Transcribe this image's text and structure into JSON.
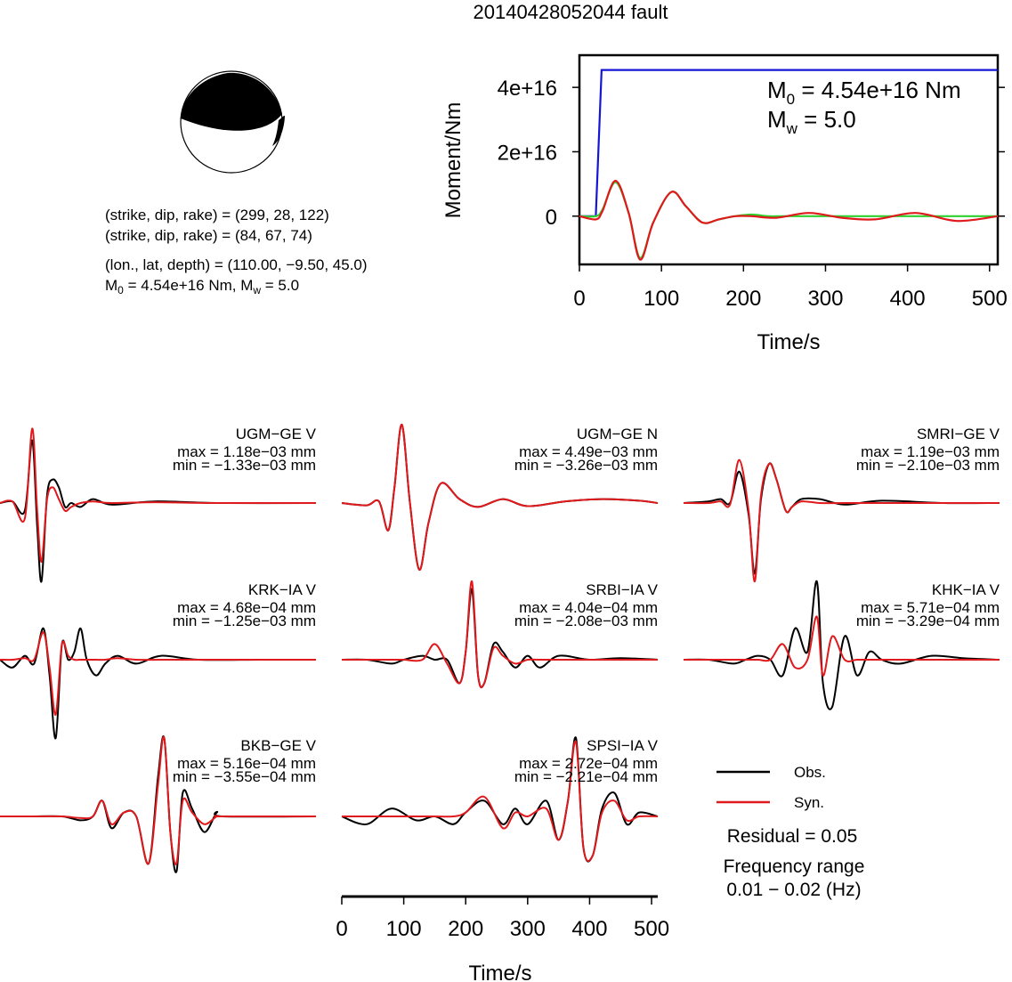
{
  "title": "20140428052044 fault",
  "mechanism": {
    "line1": "(strike, dip, rake) = (299, 28, 122)",
    "line2": "(strike, dip, rake) = (84, 67, 74)",
    "line3": "(lon., lat, depth) = (110.00, −9.50, 45.0)",
    "m0_prefix": "M",
    "m0_sub": "0",
    "m0_rest": " = 4.54e+16 Nm, M",
    "mw_sub": "w",
    "mw_rest": " = 5.0"
  },
  "legend": {
    "obs": "Obs.",
    "syn": "Syn.",
    "residual": "Residual = 0.05",
    "freq_label": "Frequency range",
    "freq_value": "0.01 − 0.02 (Hz)"
  },
  "colors": {
    "observed": "#000000",
    "synthetic": "#e0191c",
    "moment": "#1515d6",
    "stf": "#2fd12f"
  },
  "chart_data": [
    {
      "type": "line",
      "xlabel": "Time/s",
      "ylabel": "Moment/Nm",
      "xlim": [
        0,
        510
      ],
      "ylim": [
        -15000000000000000,
        50000000000000000
      ],
      "xticks": [
        "0",
        "100",
        "200",
        "300",
        "400",
        "500"
      ],
      "yticks": [
        "0",
        "2e+16",
        "4e+16"
      ],
      "annotation": {
        "m0_pre": "M",
        "m0_sub": "0",
        "m0_post": " = 4.54e+16 Nm",
        "mw_pre": "M",
        "mw_sub": "w",
        "mw_post": " = 5.0"
      },
      "series": [
        {
          "kind": "cumulative moment",
          "color": "#1515d6",
          "x": [
            0,
            20,
            27,
            510
          ],
          "y": [
            0,
            0,
            45400000000000000,
            45400000000000000
          ]
        },
        {
          "kind": "moment rate (green)",
          "color": "#2fd12f",
          "x": [
            0,
            20,
            28,
            44,
            60,
            74,
            90,
            112,
            130,
            150,
            170,
            190,
            210,
            230,
            250,
            280,
            510
          ],
          "y": [
            0,
            0,
            2000000000000000,
            10500000000000000,
            1000000000000000,
            -13000000000000000,
            -2000000000000000,
            7500000000000000,
            3000000000000000,
            -2000000000000000,
            -1000000000000000,
            0,
            500000000000000,
            0,
            0,
            0,
            0
          ]
        },
        {
          "kind": "moment rate (red)",
          "color": "#e0191c",
          "x": [
            0,
            20,
            28,
            44,
            60,
            74,
            90,
            112,
            130,
            150,
            170,
            190,
            210,
            240,
            280,
            320,
            360,
            410,
            460,
            510
          ],
          "y": [
            0,
            -1000000000000000,
            1500000000000000,
            11000000000000000,
            1000000000000000,
            -13500000000000000,
            -2000000000000000,
            7500000000000000,
            3000000000000000,
            -2000000000000000,
            -1000000000000000,
            0,
            0,
            -500000000000000,
            1000000000000000,
            -500000000000000,
            -1000000000000000,
            1000000000000000,
            -1500000000000000,
            0
          ]
        }
      ]
    },
    {
      "type": "line",
      "xlabel": "Time/s",
      "xlim": [
        0,
        510
      ],
      "xticks": [
        "0",
        "100",
        "200",
        "300",
        "400",
        "500"
      ],
      "panels": [
        {
          "station": "UGM−GE V",
          "max": "max = 1.18e−03 mm",
          "min": "min = −1.33e−03 mm",
          "obs_x": [
            0,
            20,
            40,
            52,
            60,
            67,
            76,
            85,
            95,
            105,
            115,
            130,
            150,
            180,
            250,
            350,
            510
          ],
          "obs_y": [
            0,
            0.02,
            -0.1,
            0.8,
            -0.3,
            -1.0,
            0.1,
            0.3,
            0.2,
            -0.05,
            0.0,
            -0.05,
            0.05,
            -0.02,
            0.02,
            0,
            0
          ],
          "syn_x": [
            0,
            20,
            40,
            52,
            60,
            67,
            76,
            85,
            95,
            105,
            115,
            130,
            150,
            180,
            250,
            350,
            510
          ],
          "syn_y": [
            0,
            0.02,
            -0.2,
            0.95,
            -0.1,
            -0.75,
            0.05,
            0.2,
            0.05,
            -0.1,
            -0.05,
            0.0,
            0.02,
            0,
            0.01,
            0,
            0
          ]
        },
        {
          "station": "UGM−GE N",
          "max": "max = 4.49e−03 mm",
          "min": "min = −3.26e−03 mm",
          "obs_x": [
            0,
            40,
            60,
            75,
            85,
            97,
            110,
            125,
            140,
            160,
            190,
            220,
            260,
            300,
            360,
            420,
            480,
            510
          ],
          "obs_y": [
            0,
            -0.03,
            0.02,
            -0.35,
            0.2,
            1.0,
            0.0,
            -0.85,
            -0.25,
            0.25,
            0.05,
            -0.05,
            0.05,
            -0.04,
            0.02,
            0.05,
            0.03,
            0
          ],
          "syn_x": [
            0,
            40,
            60,
            75,
            85,
            97,
            110,
            125,
            140,
            160,
            190,
            220,
            260,
            300,
            360,
            420,
            480,
            510
          ],
          "syn_y": [
            0,
            -0.03,
            0.02,
            -0.35,
            0.2,
            1.0,
            0.0,
            -0.85,
            -0.25,
            0.25,
            0.05,
            -0.05,
            0.05,
            -0.04,
            0.02,
            0.05,
            0.03,
            0
          ]
        },
        {
          "station": "SMRI−GE V",
          "max": "max = 1.19e−03 mm",
          "min": "min = −2.10e−03 mm",
          "obs_x": [
            0,
            40,
            60,
            75,
            90,
            105,
            115,
            125,
            138,
            150,
            165,
            175,
            190,
            220,
            260,
            320,
            420,
            510
          ],
          "obs_y": [
            0,
            0.02,
            0.05,
            0.0,
            0.4,
            -0.15,
            -0.9,
            0.05,
            0.5,
            0.3,
            -0.1,
            -0.05,
            0.05,
            0.05,
            -0.02,
            0.03,
            0,
            0
          ],
          "syn_x": [
            0,
            40,
            60,
            75,
            90,
            105,
            115,
            125,
            138,
            150,
            165,
            175,
            190,
            220,
            260,
            320,
            420,
            510
          ],
          "syn_y": [
            0,
            0.0,
            0.02,
            -0.02,
            0.55,
            -0.1,
            -1.0,
            0.1,
            0.5,
            0.3,
            -0.1,
            -0.05,
            0.02,
            0.0,
            0.0,
            0.0,
            0,
            0
          ]
        },
        {
          "station": "KRK−IA V",
          "max": "max = 4.68e−04 mm",
          "min": "min = −1.25e−03 mm",
          "obs_x": [
            0,
            20,
            40,
            55,
            70,
            80,
            90,
            100,
            110,
            120,
            130,
            140,
            155,
            170,
            190,
            220,
            260,
            320,
            420,
            510
          ],
          "obs_y": [
            0,
            -0.1,
            0.05,
            -0.05,
            0.4,
            -0.2,
            -1.0,
            0.2,
            0.0,
            0.1,
            0.4,
            0.0,
            -0.2,
            -0.05,
            0.05,
            -0.05,
            0.05,
            0.0,
            0,
            0
          ],
          "syn_x": [
            0,
            20,
            40,
            55,
            70,
            80,
            90,
            100,
            110,
            120,
            130,
            140,
            155,
            170,
            190,
            220,
            260,
            320,
            420,
            510
          ],
          "syn_y": [
            0,
            0.0,
            0.02,
            0.0,
            0.35,
            -0.1,
            -0.7,
            0.2,
            0.05,
            0.0,
            0.0,
            0.0,
            0.0,
            0.0,
            0.02,
            0.0,
            0.0,
            0.0,
            0,
            0
          ]
        },
        {
          "station": "SRBI−IA V",
          "max": "max = 4.04e−04 mm",
          "min": "min = −2.08e−03 mm",
          "obs_x": [
            0,
            40,
            80,
            100,
            130,
            150,
            170,
            190,
            200,
            210,
            220,
            230,
            245,
            260,
            280,
            300,
            320,
            350,
            400,
            450,
            510
          ],
          "obs_y": [
            0,
            0.0,
            -0.05,
            0.0,
            0.05,
            0.0,
            0.0,
            -0.3,
            0.1,
            0.9,
            -0.2,
            -0.3,
            0.2,
            0.1,
            -0.1,
            0.05,
            -0.1,
            0.05,
            0.0,
            0.02,
            0
          ],
          "syn_x": [
            0,
            40,
            80,
            100,
            130,
            150,
            170,
            190,
            200,
            210,
            220,
            230,
            245,
            260,
            280,
            300,
            320,
            350,
            400,
            450,
            510
          ],
          "syn_y": [
            0,
            0.0,
            0.0,
            0.0,
            0.0,
            0.2,
            -0.05,
            -0.3,
            0.1,
            1.0,
            -0.2,
            -0.3,
            0.15,
            0.05,
            -0.05,
            0.0,
            0.0,
            0.0,
            0.0,
            0.0,
            0
          ]
        },
        {
          "station": "KHK−IA V",
          "max": "max = 5.71e−04 mm",
          "min": "min = −3.29e−04 mm",
          "obs_x": [
            0,
            40,
            80,
            100,
            120,
            140,
            160,
            180,
            200,
            215,
            225,
            240,
            260,
            280,
            300,
            320,
            350,
            400,
            450,
            510
          ],
          "obs_y": [
            0,
            0.0,
            -0.05,
            0.0,
            0.05,
            0.0,
            -0.2,
            0.4,
            0.1,
            1.0,
            -0.3,
            -0.6,
            0.3,
            -0.2,
            0.1,
            0.0,
            -0.05,
            0.05,
            0.02,
            0
          ],
          "syn_x": [
            0,
            40,
            80,
            100,
            120,
            140,
            160,
            180,
            200,
            215,
            225,
            240,
            260,
            280,
            300,
            320,
            350,
            400,
            450,
            510
          ],
          "syn_y": [
            0,
            0.0,
            0.0,
            0.0,
            0.0,
            0.0,
            0.2,
            -0.1,
            0.0,
            0.55,
            -0.2,
            0.3,
            0.0,
            0.0,
            0.0,
            0.0,
            0.0,
            0.0,
            0.0,
            0
          ]
        },
        {
          "station": "BKB−GE V",
          "max": "max = 5.16e−04 mm",
          "min": "min = −3.55e−04 mm",
          "obs_x": [
            0,
            50,
            100,
            130,
            150,
            165,
            180,
            200,
            220,
            240,
            255,
            265,
            275,
            285,
            295,
            310,
            330,
            350,
            360,
            510
          ],
          "obs_y": [
            0,
            0.0,
            0.0,
            -0.05,
            0.0,
            0.2,
            -0.15,
            0.05,
            0.0,
            -0.6,
            0.5,
            1.0,
            -0.2,
            -0.7,
            0.3,
            0.1,
            -0.2,
            0.05,
            0.0,
            0
          ],
          "syn_x": [
            0,
            50,
            100,
            130,
            150,
            165,
            180,
            200,
            220,
            240,
            255,
            265,
            275,
            285,
            295,
            310,
            330,
            350,
            360,
            510
          ],
          "syn_y": [
            0,
            0.0,
            0.0,
            -0.02,
            0.0,
            0.2,
            -0.1,
            0.05,
            0.0,
            -0.6,
            0.4,
            1.0,
            -0.2,
            -0.6,
            0.2,
            0.05,
            -0.1,
            0.0,
            0.0,
            0
          ]
        },
        {
          "station": "SPSI−IA V",
          "max": "max = 2.72e−04 mm",
          "min": "min = −2.21e−04 mm",
          "obs_x": [
            0,
            40,
            80,
            120,
            150,
            180,
            200,
            230,
            260,
            280,
            300,
            330,
            350,
            365,
            378,
            390,
            405,
            420,
            440,
            460,
            480,
            510
          ],
          "obs_y": [
            0,
            -0.1,
            0.1,
            -0.05,
            0.0,
            -0.1,
            0.05,
            0.2,
            -0.1,
            0.1,
            -0.1,
            0.2,
            -0.3,
            0.2,
            1.0,
            -0.4,
            -0.5,
            0.1,
            0.3,
            -0.1,
            0.05,
            0
          ],
          "syn_x": [
            0,
            40,
            80,
            120,
            150,
            180,
            200,
            230,
            260,
            280,
            300,
            330,
            350,
            365,
            378,
            390,
            405,
            420,
            440,
            460,
            480,
            510
          ],
          "syn_y": [
            0,
            0.0,
            0.0,
            0.0,
            0.0,
            0.0,
            0.05,
            0.25,
            -0.15,
            0.05,
            0.0,
            0.1,
            -0.3,
            0.2,
            0.95,
            -0.4,
            -0.5,
            0.05,
            0.2,
            -0.05,
            0.0,
            0
          ]
        }
      ]
    }
  ]
}
